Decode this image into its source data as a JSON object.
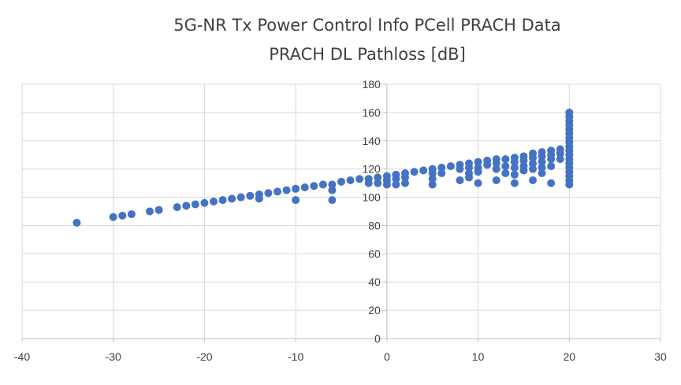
{
  "chart_data": {
    "type": "scatter",
    "title": "5G-NR Tx Power Control Info PCell PRACH Data",
    "subtitle": "PRACH DL Pathloss [dB]",
    "xlim": [
      -40,
      30
    ],
    "ylim": [
      0,
      180
    ],
    "xticks": [
      "-40",
      "-30",
      "-20",
      "-10",
      "0",
      "10",
      "20",
      "30"
    ],
    "yticks": [
      "0",
      "20",
      "40",
      "60",
      "80",
      "100",
      "120",
      "140",
      "160",
      "180"
    ],
    "grid": true,
    "legend": "none",
    "marker_color": "#4472c4",
    "points": [
      [
        -34,
        82
      ],
      [
        -30,
        86
      ],
      [
        -29,
        87
      ],
      [
        -28,
        88
      ],
      [
        -26,
        90
      ],
      [
        -25,
        91
      ],
      [
        -23,
        93
      ],
      [
        -22,
        94
      ],
      [
        -21,
        95
      ],
      [
        -20,
        96
      ],
      [
        -19,
        97
      ],
      [
        -18,
        98
      ],
      [
        -17,
        99
      ],
      [
        -16,
        100
      ],
      [
        -15,
        101
      ],
      [
        -14,
        102
      ],
      [
        -14,
        99
      ],
      [
        -13,
        103
      ],
      [
        -12,
        104
      ],
      [
        -11,
        105
      ],
      [
        -10,
        106
      ],
      [
        -10,
        98
      ],
      [
        -9,
        107
      ],
      [
        -8,
        108
      ],
      [
        -7,
        109
      ],
      [
        -6,
        109
      ],
      [
        -6,
        105
      ],
      [
        -6,
        98
      ],
      [
        -5,
        111
      ],
      [
        -4,
        112
      ],
      [
        -3,
        113
      ],
      [
        -2,
        113
      ],
      [
        -2,
        110
      ],
      [
        -1,
        114
      ],
      [
        -1,
        110
      ],
      [
        0,
        115
      ],
      [
        0,
        112
      ],
      [
        0,
        109
      ],
      [
        1,
        116
      ],
      [
        1,
        113
      ],
      [
        1,
        109
      ],
      [
        2,
        117
      ],
      [
        2,
        114
      ],
      [
        2,
        110
      ],
      [
        3,
        118
      ],
      [
        4,
        119
      ],
      [
        5,
        120
      ],
      [
        5,
        117
      ],
      [
        5,
        113
      ],
      [
        5,
        109
      ],
      [
        6,
        121
      ],
      [
        6,
        117
      ],
      [
        7,
        122
      ],
      [
        8,
        123
      ],
      [
        8,
        120
      ],
      [
        8,
        112
      ],
      [
        9,
        124
      ],
      [
        9,
        121
      ],
      [
        9,
        117
      ],
      [
        9,
        114
      ],
      [
        10,
        125
      ],
      [
        10,
        121
      ],
      [
        10,
        118
      ],
      [
        10,
        110
      ],
      [
        11,
        126
      ],
      [
        11,
        123
      ],
      [
        12,
        127
      ],
      [
        12,
        124
      ],
      [
        12,
        120
      ],
      [
        12,
        112
      ],
      [
        13,
        127
      ],
      [
        13,
        122
      ],
      [
        13,
        117
      ],
      [
        14,
        128
      ],
      [
        14,
        125
      ],
      [
        14,
        121
      ],
      [
        14,
        116
      ],
      [
        14,
        110
      ],
      [
        15,
        129
      ],
      [
        15,
        126
      ],
      [
        15,
        122
      ],
      [
        15,
        119
      ],
      [
        16,
        131
      ],
      [
        16,
        128
      ],
      [
        16,
        124
      ],
      [
        16,
        120
      ],
      [
        16,
        112
      ],
      [
        17,
        132
      ],
      [
        17,
        129
      ],
      [
        17,
        125
      ],
      [
        17,
        121
      ],
      [
        17,
        117
      ],
      [
        18,
        133
      ],
      [
        18,
        130
      ],
      [
        18,
        127
      ],
      [
        18,
        122
      ],
      [
        18,
        110
      ],
      [
        19,
        134
      ],
      [
        19,
        131
      ],
      [
        19,
        127
      ],
      [
        20,
        160
      ],
      [
        20,
        157
      ],
      [
        20,
        154
      ],
      [
        20,
        151
      ],
      [
        20,
        148
      ],
      [
        20,
        145
      ],
      [
        20,
        142
      ],
      [
        20,
        139
      ],
      [
        20,
        136
      ],
      [
        20,
        133
      ],
      [
        20,
        130
      ],
      [
        20,
        127
      ],
      [
        20,
        124
      ],
      [
        20,
        121
      ],
      [
        20,
        118
      ],
      [
        20,
        115
      ],
      [
        20,
        112
      ],
      [
        20,
        109
      ]
    ]
  }
}
